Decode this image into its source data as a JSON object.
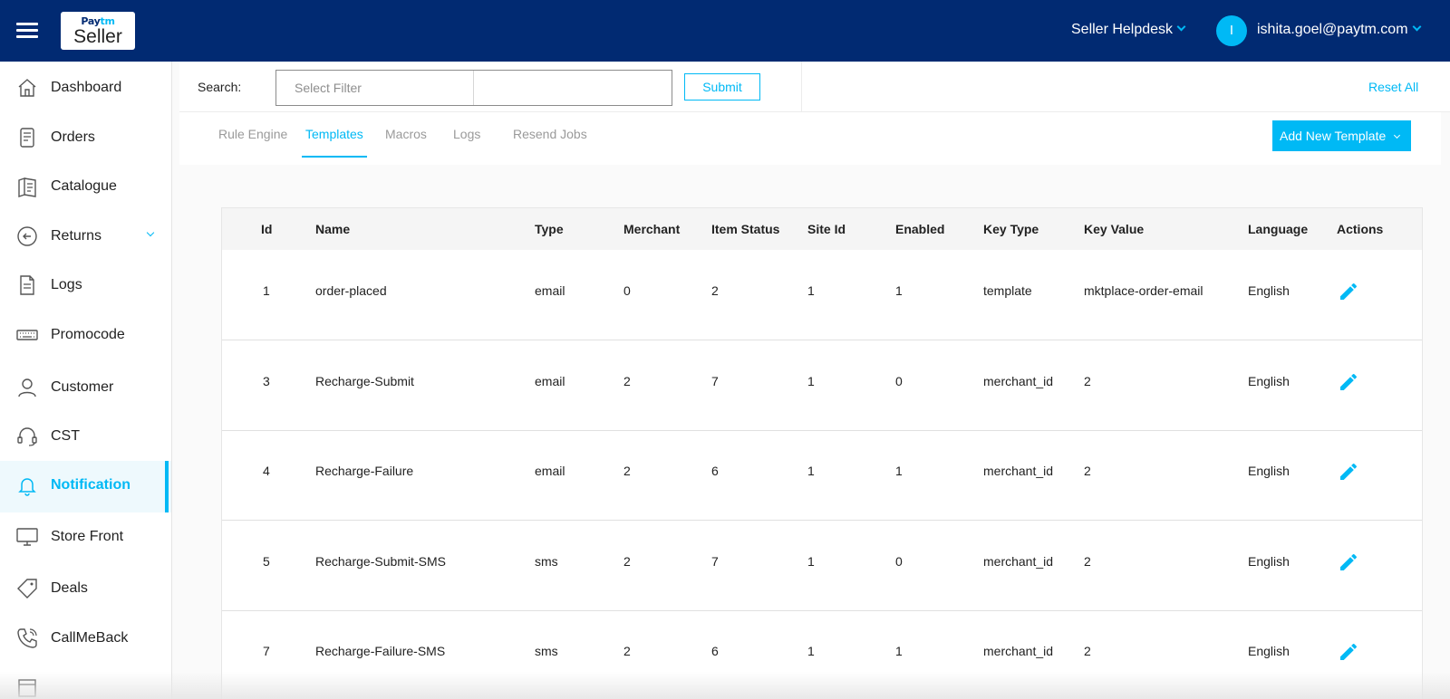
{
  "header": {
    "logo_top": "Paytm",
    "logo_bottom": "Seller",
    "helpdesk": "Seller Helpdesk",
    "avatar_initial": "I",
    "user_email": "ishita.goel@paytm.com"
  },
  "sidebar": {
    "items": [
      {
        "label": "Dashboard",
        "icon": "home-icon"
      },
      {
        "label": "Orders",
        "icon": "orders-icon"
      },
      {
        "label": "Catalogue",
        "icon": "catalogue-icon"
      },
      {
        "label": "Returns",
        "icon": "returns-icon"
      },
      {
        "label": "Logs",
        "icon": "document-icon"
      },
      {
        "label": "Promocode",
        "icon": "keyboard-icon"
      },
      {
        "label": "Customer",
        "icon": "user-icon"
      },
      {
        "label": "CST",
        "icon": "headset-icon"
      },
      {
        "label": "Notification",
        "icon": "bell-icon",
        "active": true
      },
      {
        "label": "Store Front",
        "icon": "monitor-icon"
      },
      {
        "label": "Deals",
        "icon": "tag-icon"
      },
      {
        "label": "CallMeBack",
        "icon": "phone-icon"
      }
    ]
  },
  "search": {
    "label": "Search:",
    "filter_placeholder": "Select Filter",
    "value": "",
    "submit": "Submit",
    "reset": "Reset All"
  },
  "tabs": [
    {
      "label": "Rule Engine"
    },
    {
      "label": "Templates",
      "active": true
    },
    {
      "label": "Macros"
    },
    {
      "label": "Logs"
    },
    {
      "label": "Resend Jobs"
    }
  ],
  "add_button": "Add New Template",
  "table": {
    "columns": [
      "Id",
      "Name",
      "Type",
      "Merchant",
      "Item Status",
      "Site Id",
      "Enabled",
      "Key Type",
      "Key Value",
      "Language",
      "Actions"
    ],
    "rows": [
      [
        "1",
        "order-placed",
        "email",
        "0",
        "2",
        "1",
        "1",
        "template",
        "mktplace-order-email",
        "English"
      ],
      [
        "3",
        "Recharge-Submit",
        "email",
        "2",
        "7",
        "1",
        "0",
        "merchant_id",
        "2",
        "English"
      ],
      [
        "4",
        "Recharge-Failure",
        "email",
        "2",
        "6",
        "1",
        "1",
        "merchant_id",
        "2",
        "English"
      ],
      [
        "5",
        "Recharge-Submit-SMS",
        "sms",
        "2",
        "7",
        "1",
        "0",
        "merchant_id",
        "2",
        "English"
      ],
      [
        "7",
        "Recharge-Failure-SMS",
        "sms",
        "2",
        "6",
        "1",
        "1",
        "merchant_id",
        "2",
        "English"
      ]
    ]
  },
  "colors": {
    "header_bg": "#012a72",
    "accent": "#00b9f5"
  }
}
